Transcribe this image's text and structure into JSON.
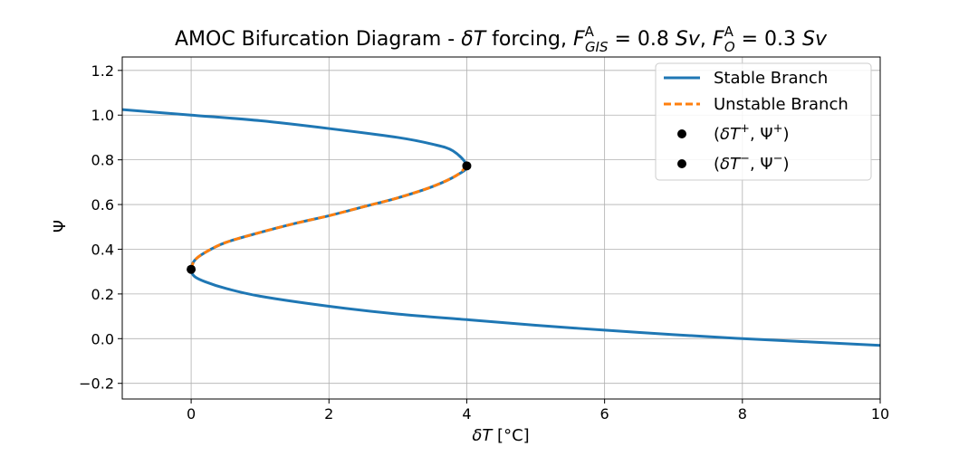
{
  "chart_data": {
    "type": "line",
    "title": {
      "prefix": "AMOC Bifurcation Diagram - ",
      "delta": "δ",
      "T": "T",
      "forcing": " forcing, ",
      "F": "F",
      "sub1": "GIS",
      "sup": "A",
      "eq1": " = 0.8 ",
      "Sv": "Sv",
      "comma": ", ",
      "sub2": "O",
      "eq2": " = 0.3 "
    },
    "xlabel": {
      "delta": "δ",
      "T": "T",
      "unit": " [°C]"
    },
    "ylabel": "Ψ",
    "xlim": [
      -1,
      10
    ],
    "ylim": [
      -0.27,
      1.26
    ],
    "xticks": [
      0,
      2,
      4,
      6,
      8,
      10
    ],
    "yticks": [
      -0.2,
      0.0,
      0.2,
      0.4,
      0.6,
      0.8,
      1.0,
      1.2
    ],
    "grid": true,
    "legend_position": "top-right",
    "colors": {
      "stable": "#1f77b4",
      "unstable": "#ff7f0e",
      "points": "#000000",
      "grid": "#b0b0b0"
    },
    "series": [
      {
        "name": "Stable Branch",
        "style": "solid",
        "x": [
          -1.0,
          0.0,
          1.0,
          2.0,
          3.0,
          3.5,
          3.8,
          4.0,
          3.85,
          3.5,
          3.0,
          2.5,
          2.0,
          1.5,
          1.0,
          0.5,
          0.2,
          0.05,
          0.0,
          0.05,
          0.2,
          0.5,
          1.0,
          2.0,
          3.0,
          4.0,
          5.0,
          6.0,
          7.0,
          8.0,
          9.0,
          10.0
        ],
        "y": [
          1.025,
          1.0,
          0.975,
          0.94,
          0.9,
          0.87,
          0.84,
          0.773,
          0.73,
          0.68,
          0.63,
          0.59,
          0.55,
          0.515,
          0.475,
          0.43,
          0.385,
          0.35,
          0.31,
          0.278,
          0.255,
          0.225,
          0.19,
          0.145,
          0.11,
          0.085,
          0.06,
          0.038,
          0.018,
          0.0,
          -0.015,
          -0.03
        ]
      },
      {
        "name": "Unstable Branch",
        "style": "dashed",
        "x": [
          4.0,
          3.85,
          3.5,
          3.0,
          2.5,
          2.0,
          1.5,
          1.0,
          0.5,
          0.2,
          0.05,
          0.0
        ],
        "y": [
          0.773,
          0.73,
          0.68,
          0.63,
          0.59,
          0.55,
          0.515,
          0.475,
          0.43,
          0.385,
          0.35,
          0.31
        ]
      }
    ],
    "points": [
      {
        "name": "(δT⁺, Ψ⁺)",
        "label": {
          "pre": "(",
          "delta": "δ",
          "T": "T",
          "sup": "+",
          "comma": ", Ψ",
          "post": ")"
        },
        "x": 4.0,
        "y": 0.773
      },
      {
        "name": "(δT⁻, Ψ⁻)",
        "label": {
          "pre": "(",
          "delta": "δ",
          "T": "T",
          "sup": "−",
          "comma": ", Ψ",
          "post": ")"
        },
        "x": 0.0,
        "y": 0.31
      }
    ]
  }
}
